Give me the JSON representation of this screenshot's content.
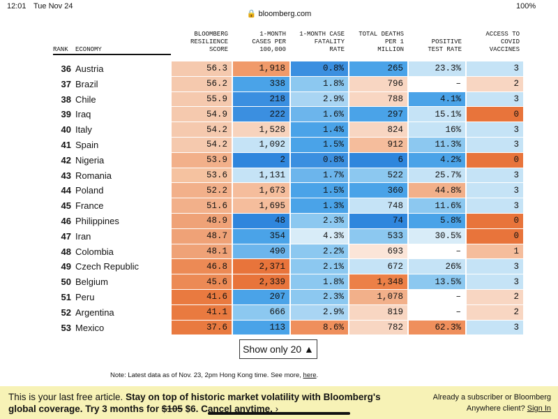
{
  "status_bar": {
    "time": "12:01",
    "date": "Tue Nov 24",
    "url": "bloomberg.com",
    "battery": "100%"
  },
  "table": {
    "header": {
      "rank": "RANK",
      "economy": "ECONOMY",
      "columns": [
        [
          "BLOOMBERG",
          "RESILIENCE",
          "SCORE"
        ],
        [
          "1-MONTH",
          "CASES PER",
          "100,000"
        ],
        [
          "1-MONTH CASE",
          "FATALITY",
          "RATE"
        ],
        [
          "TOTAL DEATHS",
          "PER 1",
          "MILLION"
        ],
        [
          "POSITIVE",
          "TEST RATE"
        ],
        [
          "ACCESS TO",
          "COVID",
          "VACCINES"
        ]
      ]
    },
    "rows": [
      [
        "36",
        "Austria",
        "56.3",
        "1,918",
        "0.8%",
        "265",
        "23.3%",
        "3"
      ],
      [
        "37",
        "Brazil",
        "56.2",
        "338",
        "1.8%",
        "796",
        "–",
        "2"
      ],
      [
        "38",
        "Chile",
        "55.9",
        "218",
        "2.9%",
        "788",
        "4.1%",
        "3"
      ],
      [
        "39",
        "Iraq",
        "54.9",
        "222",
        "1.6%",
        "297",
        "15.1%",
        "0"
      ],
      [
        "40",
        "Italy",
        "54.2",
        "1,528",
        "1.4%",
        "824",
        "16%",
        "3"
      ],
      [
        "41",
        "Spain",
        "54.2",
        "1,092",
        "1.5%",
        "912",
        "11.3%",
        "3"
      ],
      [
        "42",
        "Nigeria",
        "53.9",
        "2",
        "0.8%",
        "6",
        "4.2%",
        "0"
      ],
      [
        "43",
        "Romania",
        "53.6",
        "1,131",
        "1.7%",
        "522",
        "25.7%",
        "3"
      ],
      [
        "44",
        "Poland",
        "52.2",
        "1,673",
        "1.5%",
        "360",
        "44.8%",
        "3"
      ],
      [
        "45",
        "France",
        "51.6",
        "1,695",
        "1.3%",
        "748",
        "11.6%",
        "3"
      ],
      [
        "46",
        "Philippines",
        "48.9",
        "48",
        "2.3%",
        "74",
        "5.8%",
        "0"
      ],
      [
        "47",
        "Iran",
        "48.7",
        "354",
        "4.3%",
        "533",
        "30.5%",
        "0"
      ],
      [
        "48",
        "Colombia",
        "48.1",
        "490",
        "2.2%",
        "693",
        "–",
        "1"
      ],
      [
        "49",
        "Czech Republic",
        "46.8",
        "2,371",
        "2.1%",
        "672",
        "26%",
        "3"
      ],
      [
        "50",
        "Belgium",
        "45.6",
        "2,339",
        "1.8%",
        "1,348",
        "13.5%",
        "3"
      ],
      [
        "51",
        "Peru",
        "41.6",
        "207",
        "2.3%",
        "1,078",
        "–",
        "2"
      ],
      [
        "52",
        "Argentina",
        "41.1",
        "666",
        "2.9%",
        "819",
        "–",
        "2"
      ],
      [
        "53",
        "Mexico",
        "37.6",
        "113",
        "8.6%",
        "782",
        "62.3%",
        "3"
      ]
    ],
    "colors": [
      [
        "#f5c9ae",
        "#f09a6a",
        "#3b8fe0",
        "#4aa3e8",
        "#c5e3f6",
        "#c5e3f6"
      ],
      [
        "#f5c9ae",
        "#4aa3e8",
        "#8cc8f0",
        "#f8d6c2",
        "#ffffff",
        "#f8d6c2"
      ],
      [
        "#f5c9ae",
        "#3b8fe0",
        "#a9d5f3",
        "#f8d6c2",
        "#4aa3e8",
        "#c5e3f6"
      ],
      [
        "#f5c9ae",
        "#3b8fe0",
        "#6cb5ec",
        "#4aa3e8",
        "#c5e3f6",
        "#e8743b"
      ],
      [
        "#f5c9ae",
        "#f7d3bd",
        "#4aa3e8",
        "#f8d6c2",
        "#c5e3f6",
        "#c5e3f6"
      ],
      [
        "#f5c9ae",
        "#c5e3f6",
        "#4aa3e8",
        "#f5bd9c",
        "#8cc8f0",
        "#c5e3f6"
      ],
      [
        "#f2b08a",
        "#2f86dd",
        "#3b8fe0",
        "#2f86dd",
        "#4aa3e8",
        "#e8743b"
      ],
      [
        "#f5c2a0",
        "#c5e3f6",
        "#6cb5ec",
        "#8cc8f0",
        "#c5e3f6",
        "#c5e3f6"
      ],
      [
        "#f2b08a",
        "#f5bd9c",
        "#4aa3e8",
        "#4aa3e8",
        "#f2b08a",
        "#c5e3f6"
      ],
      [
        "#f2b08a",
        "#f5bd9c",
        "#4aa3e8",
        "#c5e3f6",
        "#8cc8f0",
        "#c5e3f6"
      ],
      [
        "#efa277",
        "#2f86dd",
        "#8cc8f0",
        "#2f86dd",
        "#4aa3e8",
        "#e8743b"
      ],
      [
        "#efa277",
        "#4aa3e8",
        "#d8ecf8",
        "#8cc8f0",
        "#d8ecf8",
        "#e8743b"
      ],
      [
        "#efa277",
        "#6cb5ec",
        "#8cc8f0",
        "#fbe5d8",
        "#ffffff",
        "#f5bd9c"
      ],
      [
        "#ec8a55",
        "#e8743b",
        "#8cc8f0",
        "#c5e3f6",
        "#c5e3f6",
        "#c5e3f6"
      ],
      [
        "#ec8a55",
        "#e8743b",
        "#8cc8f0",
        "#ec8047",
        "#8cc8f0",
        "#c5e3f6"
      ],
      [
        "#e97a40",
        "#4aa3e8",
        "#8cc8f0",
        "#f2b08a",
        "#ffffff",
        "#f8d6c2"
      ],
      [
        "#e97a40",
        "#8cc8f0",
        "#a9d5f3",
        "#f8d6c2",
        "#ffffff",
        "#f8d6c2"
      ],
      [
        "#e97a40",
        "#4aa3e8",
        "#ef8f5c",
        "#f8d6c2",
        "#ef8f5c",
        "#c5e3f6"
      ]
    ]
  },
  "button": "Show only 20 ▲",
  "note": {
    "text": "Note: Latest data as of Nov. 23, 2pm Hong Kong time. See more, ",
    "link": "here",
    "end": "."
  },
  "banner": {
    "lead": "This is your last free article. ",
    "bold1": "Stay on top of historic market volatility with Bloomberg's global coverage. Try 3 months for ",
    "old_price": "$105",
    "new_price": " $6. Cancel anytime.",
    "arrow": " ›",
    "right": "Already a subscriber or Bloomberg Anywhere client? ",
    "sign_in": "Sign In"
  }
}
